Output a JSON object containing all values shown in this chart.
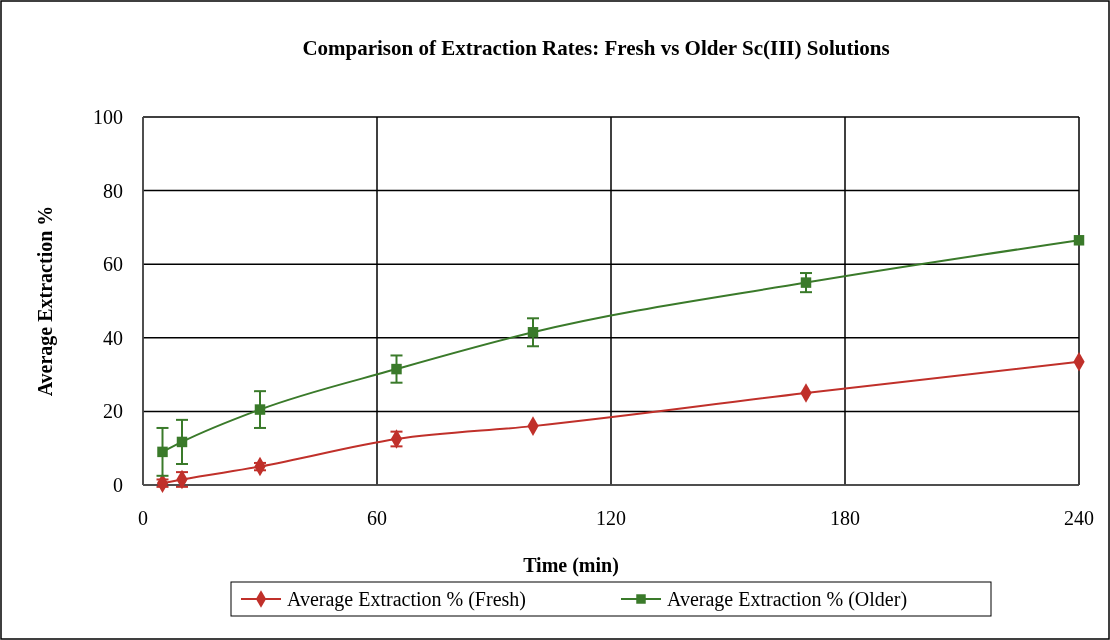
{
  "chart_data": {
    "type": "line",
    "title": "Comparison of Extraction Rates: Fresh vs Older Sc(III) Solutions",
    "xlabel": "Time (min)",
    "ylabel": "Average Extraction %",
    "xlim": [
      0,
      240
    ],
    "xticks": [
      0,
      60,
      120,
      180,
      240
    ],
    "ylim": [
      0,
      100
    ],
    "yticks": [
      0,
      20,
      40,
      60,
      80,
      100
    ],
    "grid": true,
    "legend": "bottom",
    "line_style": "solid",
    "series": [
      {
        "name": "Average Extraction % (Fresh)",
        "color": "#c0302a",
        "marker": "diamond",
        "x": [
          5,
          10,
          30,
          65,
          100,
          170,
          240
        ],
        "values": [
          0.5,
          1.5,
          5,
          12.5,
          16,
          25,
          33.5
        ],
        "errors": [
          1,
          2,
          1,
          2,
          null,
          null,
          null
        ]
      },
      {
        "name": "Average Extraction % (Older)",
        "color": "#3a7a2a",
        "marker": "square",
        "x": [
          5,
          10,
          30,
          65,
          100,
          170,
          240
        ],
        "values": [
          9,
          11.7,
          20.5,
          31.5,
          41.5,
          55,
          66.5
        ],
        "errors": [
          6.5,
          6,
          5,
          3.7,
          3.8,
          2.6,
          null
        ]
      }
    ]
  }
}
